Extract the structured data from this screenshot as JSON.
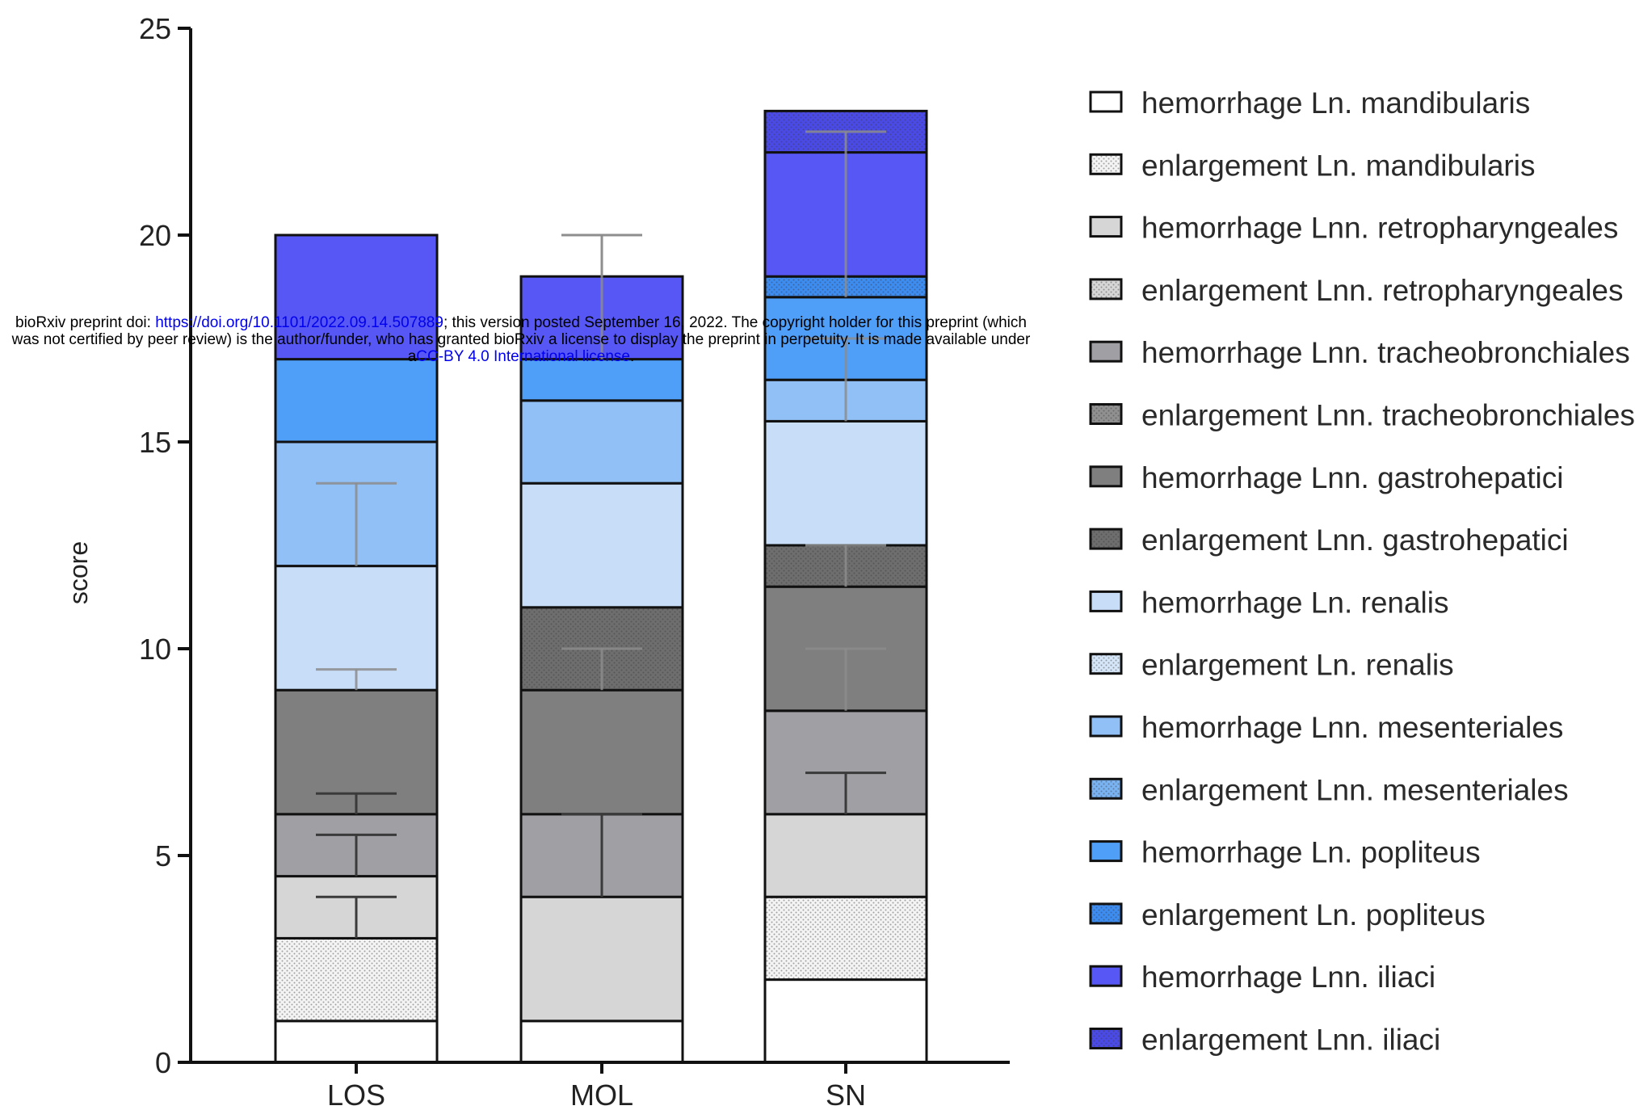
{
  "chart_data": {
    "type": "bar",
    "stacked": true,
    "ylabel": "score",
    "xlabel": "",
    "ylim": [
      0,
      25
    ],
    "yticks": [
      0,
      5,
      10,
      15,
      20,
      25
    ],
    "categories": [
      "LOS",
      "MOL",
      "SN"
    ],
    "legend_position": "right",
    "series": [
      {
        "name": "hemorrhage Ln. mandibularis",
        "color": "#ffffff",
        "pattern": "none",
        "values": [
          1,
          1,
          2
        ],
        "errors": [
          null,
          null,
          null
        ]
      },
      {
        "name": "enlargement Ln. mandibularis",
        "color": "#f4f4f4",
        "pattern": "dots",
        "values": [
          2,
          0,
          2
        ],
        "errors": [
          1,
          null,
          null
        ]
      },
      {
        "name": "hemorrhage Lnn. retropharyngeales",
        "color": "#d6d6d6",
        "pattern": "none",
        "values": [
          1.5,
          3,
          2
        ],
        "errors": [
          1,
          2,
          1
        ]
      },
      {
        "name": "enlargement Lnn. retropharyngeales",
        "color": "#d6d6d6",
        "pattern": "dots",
        "values": [
          0,
          0,
          0
        ],
        "errors": [
          null,
          null,
          null
        ]
      },
      {
        "name": "hemorrhage Lnn. tracheobronchiales",
        "color": "#a0a0a4",
        "pattern": "none",
        "values": [
          1.5,
          2,
          2.5
        ],
        "errors": [
          0.5,
          null,
          1.5
        ]
      },
      {
        "name": "enlargement Lnn. tracheobronchiales",
        "color": "#909090",
        "pattern": "dots",
        "values": [
          0,
          0,
          0
        ],
        "errors": [
          null,
          null,
          null
        ]
      },
      {
        "name": "hemorrhage Lnn. gastrohepatici",
        "color": "#7f7f7f",
        "pattern": "none",
        "values": [
          3,
          3,
          3
        ],
        "errors": [
          0.5,
          1,
          1
        ]
      },
      {
        "name": "enlargement Lnn. gastrohepatici",
        "color": "#6e6e6e",
        "pattern": "dots",
        "values": [
          0,
          2,
          1
        ],
        "errors": [
          null,
          null,
          null
        ]
      },
      {
        "name": "hemorrhage Ln. renalis",
        "color": "#c8ddf7",
        "pattern": "none",
        "values": [
          3,
          3,
          3
        ],
        "errors": [
          2,
          null,
          2
        ]
      },
      {
        "name": "enlargement Ln. renalis",
        "color": "#d6e6f9",
        "pattern": "dots",
        "values": [
          0,
          0,
          0
        ],
        "errors": [
          null,
          null,
          null
        ]
      },
      {
        "name": "hemorrhage Lnn. mesenteriales",
        "color": "#91c0f6",
        "pattern": "none",
        "values": [
          3,
          2,
          1
        ],
        "errors": [
          null,
          null,
          null
        ]
      },
      {
        "name": "enlargement Lnn. mesenteriales",
        "color": "#7ab3f2",
        "pattern": "dots",
        "values": [
          0,
          0,
          0
        ],
        "errors": [
          null,
          null,
          null
        ]
      },
      {
        "name": "hemorrhage Ln. popliteus",
        "color": "#4f9ef8",
        "pattern": "none",
        "values": [
          2,
          1,
          2
        ],
        "errors": [
          null,
          3,
          4
        ]
      },
      {
        "name": "enlargement Ln. popliteus",
        "color": "#3d8cf0",
        "pattern": "dots",
        "values": [
          0,
          0,
          0.5
        ],
        "errors": [
          null,
          null,
          null
        ]
      },
      {
        "name": "hemorrhage Lnn. iliaci",
        "color": "#5757f5",
        "pattern": "none",
        "values": [
          3,
          2,
          3
        ],
        "errors": [
          null,
          1,
          null
        ]
      },
      {
        "name": "enlargement Lnn. iliaci",
        "color": "#4a4ae6",
        "pattern": "dots",
        "values": [
          0,
          0,
          1
        ],
        "errors": [
          null,
          null,
          null
        ]
      }
    ]
  },
  "watermark": {
    "prefix": "bioRxiv preprint doi: ",
    "doi_link": "https://doi.org/10.1101/2022.09.14.507889",
    "middle": "; this version posted September 16, 2022. The copyright holder for this preprint (which was not certified by peer review) is the author/funder, who has granted bioRxiv a license to display the preprint in perpetuity. It is made available under a",
    "license_link": "CC-BY 4.0 International license",
    "suffix": "."
  }
}
